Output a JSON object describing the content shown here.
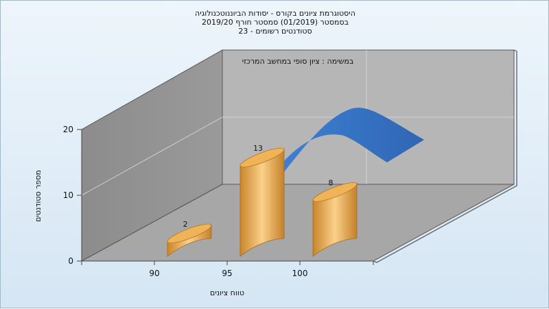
{
  "chart_data": {
    "type": "bar",
    "title_lines": [
      "היסטוגרמת ציונים בקורס - יסודות הביוננוטכנולוגיה",
      "בסמסטר  (01/2019)  סמסטר חורף 2019/20",
      "סטודנטים רשומים - 23"
    ],
    "panel_label": "במשימה : ציון סופי במחשב המרכזי",
    "xlabel": "טווח ציונים",
    "ylabel": "מספר סטודנטים",
    "categories": [
      "90",
      "95",
      "100"
    ],
    "values": [
      2,
      13,
      8
    ],
    "y_ticks": [
      "0",
      "10",
      "20"
    ],
    "ylim": [
      0,
      20
    ],
    "grid": true,
    "colors": {
      "bar": "#e7a94a",
      "curve": "#3a72c4",
      "floor": "#a7a7a7",
      "wall": "#b6b6b6"
    }
  }
}
